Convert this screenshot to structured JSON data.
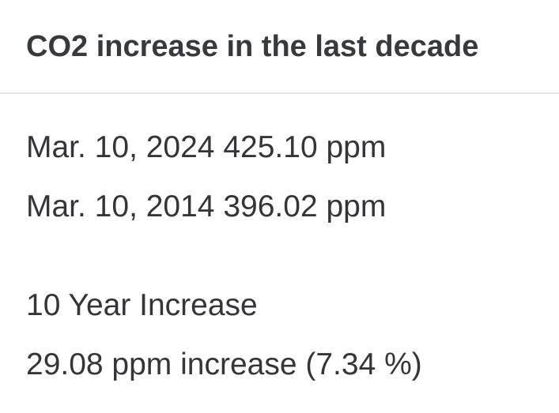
{
  "header": {
    "title": "CO2 increase in the last decade"
  },
  "readings": [
    {
      "date": "Mar. 10, 2024",
      "value": "425.10 ppm"
    },
    {
      "date": "Mar. 10, 2014",
      "value": "396.02 ppm"
    }
  ],
  "summary": {
    "label": "10 Year Increase",
    "text": "29.08 ppm increase (7.34 %)"
  }
}
